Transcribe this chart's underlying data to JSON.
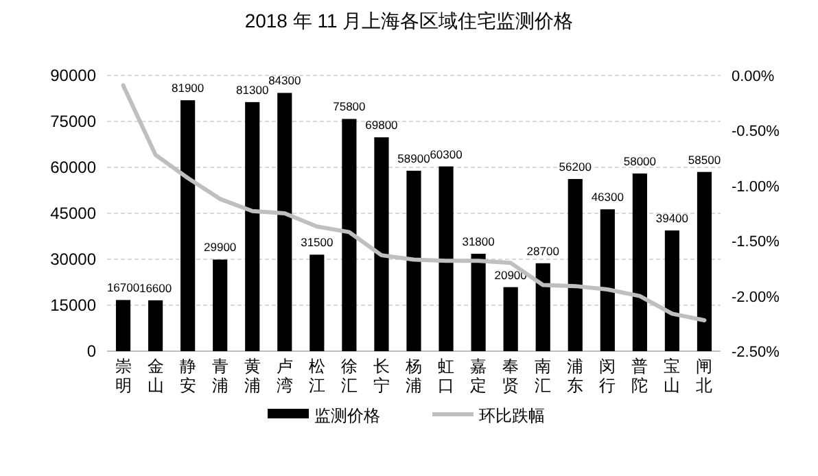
{
  "chart_data": {
    "type": "bar",
    "title": "2018 年 11 月上海各区域住宅监测价格",
    "categories": [
      "崇明",
      "金山",
      "静安",
      "青浦",
      "黄浦",
      "卢湾",
      "松江",
      "徐汇",
      "长宁",
      "杨浦",
      "虹口",
      "嘉定",
      "奉贤",
      "南汇",
      "浦东",
      "闵行",
      "普陀",
      "宝山",
      "闸北"
    ],
    "series": [
      {
        "name": "监测价格",
        "color": "#000000",
        "data_labels": true,
        "values": [
          16700,
          16600,
          81900,
          29900,
          81300,
          84300,
          31500,
          75800,
          69800,
          58900,
          60300,
          31800,
          20900,
          28700,
          56200,
          46300,
          58000,
          39400,
          58500
        ]
      },
      {
        "name": "环比跌幅",
        "type": "line",
        "axis": "y2",
        "color": "#bfbfbf",
        "values": [
          -0.09,
          -0.72,
          -0.93,
          -1.12,
          -1.23,
          -1.25,
          -1.37,
          -1.42,
          -1.63,
          -1.67,
          -1.68,
          -1.68,
          -1.7,
          -1.9,
          -1.91,
          -1.94,
          -2.0,
          -2.16,
          -2.22
        ]
      }
    ],
    "ylim": [
      0,
      90000
    ],
    "yticks": [
      0,
      15000,
      30000,
      45000,
      60000,
      75000,
      90000
    ],
    "y2lim": [
      -2.5,
      0
    ],
    "y2ticks": [
      {
        "value": 0,
        "label": "0.00%"
      },
      {
        "value": -0.5,
        "label": "-0.50%"
      },
      {
        "value": -1,
        "label": "-1.00%"
      },
      {
        "value": -1.5,
        "label": "-1.50%"
      },
      {
        "value": -2,
        "label": "-2.00%"
      },
      {
        "value": -2.5,
        "label": "-2.50%"
      }
    ],
    "grid": "y",
    "legend": "bottom"
  }
}
